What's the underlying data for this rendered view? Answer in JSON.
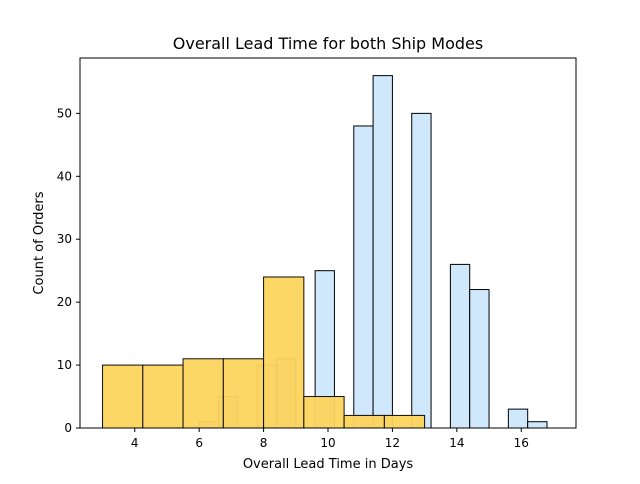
{
  "chart_data": {
    "type": "bar",
    "title": "Overall Lead Time for both Ship Modes",
    "xlabel": "Overall Lead Time in Days",
    "ylabel": "Count of Orders",
    "xlim": [
      2.3,
      17.7
    ],
    "ylim": [
      0,
      58.8
    ],
    "xticks": [
      4,
      6,
      8,
      10,
      12,
      14,
      16
    ],
    "yticks": [
      0,
      10,
      20,
      30,
      40,
      50
    ],
    "grid": false,
    "legend": "none",
    "series": [
      {
        "color": "#cfe8fc",
        "edge": "#000000",
        "bins": [
          {
            "x0": 6.0,
            "x1": 6.6,
            "value": 1
          },
          {
            "x0": 6.6,
            "x1": 7.2,
            "value": 5
          },
          {
            "x0": 7.2,
            "x1": 7.8,
            "value": 0
          },
          {
            "x0": 7.8,
            "x1": 8.4,
            "value": 10
          },
          {
            "x0": 8.4,
            "x1": 9.0,
            "value": 11
          },
          {
            "x0": 9.0,
            "x1": 9.6,
            "value": 0
          },
          {
            "x0": 9.6,
            "x1": 10.2,
            "value": 25
          },
          {
            "x0": 10.2,
            "x1": 10.8,
            "value": 0
          },
          {
            "x0": 10.8,
            "x1": 11.4,
            "value": 48
          },
          {
            "x0": 11.4,
            "x1": 12.0,
            "value": 56
          },
          {
            "x0": 12.0,
            "x1": 12.6,
            "value": 0
          },
          {
            "x0": 12.6,
            "x1": 13.2,
            "value": 50
          },
          {
            "x0": 13.2,
            "x1": 13.8,
            "value": 0
          },
          {
            "x0": 13.8,
            "x1": 14.4,
            "value": 26
          },
          {
            "x0": 14.4,
            "x1": 15.0,
            "value": 22
          },
          {
            "x0": 15.0,
            "x1": 15.6,
            "value": 0
          },
          {
            "x0": 15.6,
            "x1": 16.2,
            "value": 3
          },
          {
            "x0": 16.2,
            "x1": 16.8,
            "value": 1
          }
        ]
      },
      {
        "color": "#fdd55e",
        "alpha": 0.95,
        "edge": "#000000",
        "bins": [
          {
            "x0": 3.0,
            "x1": 4.25,
            "value": 10
          },
          {
            "x0": 4.25,
            "x1": 5.5,
            "value": 10
          },
          {
            "x0": 5.5,
            "x1": 6.75,
            "value": 11
          },
          {
            "x0": 6.75,
            "x1": 8.0,
            "value": 11
          },
          {
            "x0": 8.0,
            "x1": 9.25,
            "value": 24
          },
          {
            "x0": 9.25,
            "x1": 10.5,
            "value": 5
          },
          {
            "x0": 10.5,
            "x1": 11.75,
            "value": 2
          },
          {
            "x0": 11.75,
            "x1": 13.0,
            "value": 2
          }
        ]
      }
    ]
  }
}
